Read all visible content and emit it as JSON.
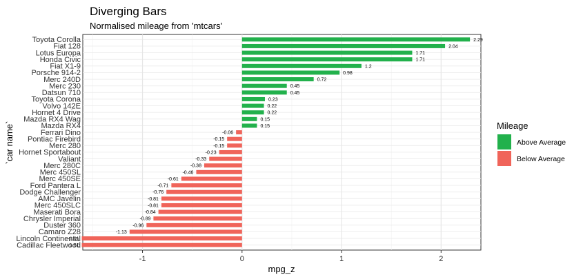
{
  "chart_data": {
    "type": "bar",
    "orientation": "horizontal",
    "title": "Diverging Bars",
    "subtitle": "Normalised mileage from 'mtcars'",
    "xlabel": "mpg_z",
    "ylabel": "`car name`",
    "xlim": [
      -1.6,
      2.4
    ],
    "xticks": [
      -1,
      0,
      1,
      2
    ],
    "grid": true,
    "legend": {
      "title": "Mileage",
      "position": "right",
      "entries": [
        {
          "label": "Above Average",
          "color": "#22b14c"
        },
        {
          "label": "Below Average",
          "color": "#f0645a"
        }
      ]
    },
    "colors": {
      "above": "#22b14c",
      "below": "#f0645a"
    },
    "categories": [
      "Toyota Corolla",
      "Fiat 128",
      "Lotus Europa",
      "Honda Civic",
      "Fiat X1-9",
      "Porsche 914-2",
      "Merc 240D",
      "Merc 230",
      "Datsun 710",
      "Toyota Corona",
      "Volvo 142E",
      "Hornet 4 Drive",
      "Mazda RX4 Wag",
      "Mazda RX4",
      "Ferrari Dino",
      "Pontiac Firebird",
      "Merc 280",
      "Hornet Sportabout",
      "Valiant",
      "Merc 280C",
      "Merc 450SL",
      "Merc 450SE",
      "Ford Pantera L",
      "Dodge Challenger",
      "AMC Javelin",
      "Merc 450SLC",
      "Maserati Bora",
      "Chrysler Imperial",
      "Duster 360",
      "Camaro Z28",
      "Lincoln Continental",
      "Cadillac Fleetwood"
    ],
    "values": [
      2.29,
      2.04,
      1.71,
      1.71,
      1.2,
      0.98,
      0.72,
      0.45,
      0.45,
      0.23,
      0.22,
      0.22,
      0.15,
      0.15,
      -0.06,
      -0.15,
      -0.15,
      -0.23,
      -0.33,
      -0.38,
      -0.46,
      -0.61,
      -0.71,
      -0.76,
      -0.81,
      -0.81,
      -0.84,
      -0.89,
      -0.96,
      -1.13,
      -1.61,
      -1.61
    ]
  }
}
